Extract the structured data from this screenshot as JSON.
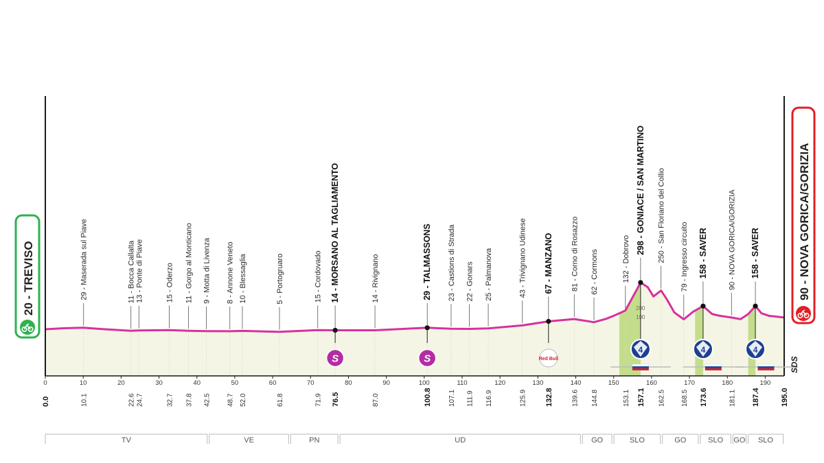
{
  "chart_data": {
    "type": "area",
    "title": "",
    "xlabel": "",
    "ylabel": "",
    "xlim": [
      0,
      195
    ],
    "ylim": [
      0,
      500
    ],
    "grid": false,
    "x_ticks": [
      0,
      10,
      20,
      30,
      40,
      50,
      60,
      70,
      80,
      90,
      100,
      110,
      120,
      130,
      140,
      150,
      160,
      170,
      180,
      190
    ],
    "start": {
      "label": "20 - TREVISO",
      "km": "0.0"
    },
    "finish": {
      "label": "90 - NOVA GORICA/GORIZIA",
      "km": "195.0"
    },
    "profile": [
      [
        0,
        20
      ],
      [
        5,
        26
      ],
      [
        10.1,
        29
      ],
      [
        15,
        21
      ],
      [
        22.6,
        11
      ],
      [
        24.7,
        13
      ],
      [
        32.7,
        15
      ],
      [
        37.8,
        11
      ],
      [
        42.5,
        9
      ],
      [
        48.7,
        8
      ],
      [
        52,
        10
      ],
      [
        61.8,
        5
      ],
      [
        71.9,
        15
      ],
      [
        76.5,
        14
      ],
      [
        87,
        14
      ],
      [
        100.8,
        29
      ],
      [
        107.1,
        23
      ],
      [
        111.9,
        22
      ],
      [
        116.9,
        25
      ],
      [
        125.9,
        43
      ],
      [
        132.8,
        67
      ],
      [
        139.6,
        81
      ],
      [
        144.8,
        62
      ],
      [
        148,
        82
      ],
      [
        150,
        100
      ],
      [
        152,
        120
      ],
      [
        153.1,
        132
      ],
      [
        155,
        210
      ],
      [
        157.1,
        298
      ],
      [
        159,
        270
      ],
      [
        160.5,
        215
      ],
      [
        162.5,
        250
      ],
      [
        164,
        200
      ],
      [
        166,
        120
      ],
      [
        168.5,
        79
      ],
      [
        171,
        125
      ],
      [
        173.6,
        158
      ],
      [
        176,
        110
      ],
      [
        178,
        100
      ],
      [
        181.1,
        90
      ],
      [
        183.5,
        80
      ],
      [
        185.5,
        110
      ],
      [
        187.4,
        158
      ],
      [
        189,
        115
      ],
      [
        191,
        100
      ],
      [
        195,
        90
      ]
    ],
    "annotations": [
      {
        "km": 10.1,
        "label": "29 - Maserada sul Piave",
        "strong": false
      },
      {
        "km": 22.6,
        "label": "11 - Bocca Callalta",
        "strong": false
      },
      {
        "km": 24.7,
        "label": "13 - Ponte di Piave",
        "strong": false
      },
      {
        "km": 32.7,
        "label": "15 - Oderzo",
        "strong": false
      },
      {
        "km": 37.8,
        "label": "11 - Gorgo al Monticano",
        "strong": false
      },
      {
        "km": 42.5,
        "label": "9 - Motta di Livenza",
        "strong": false
      },
      {
        "km": 48.7,
        "label": "8 - Annone Veneto",
        "strong": false
      },
      {
        "km": 52.0,
        "label": "10 - Blessaglia",
        "strong": false
      },
      {
        "km": 61.8,
        "label": "5 - Portogruaro",
        "strong": false
      },
      {
        "km": 71.9,
        "label": "15 - Cordovado",
        "strong": false
      },
      {
        "km": 76.5,
        "label": "14 - MORSANO AL TAGLIAMENTO",
        "strong": true
      },
      {
        "km": 87.0,
        "label": "14 - Rivignano",
        "strong": false
      },
      {
        "km": 100.8,
        "label": "29 - TALMASSONS",
        "strong": true
      },
      {
        "km": 107.1,
        "label": "23 - Castions di Strada",
        "strong": false
      },
      {
        "km": 111.9,
        "label": "22 - Gonars",
        "strong": false
      },
      {
        "km": 116.9,
        "label": "25 - Palmanova",
        "strong": false
      },
      {
        "km": 125.9,
        "label": "43 - Trivignano Udinese",
        "strong": false
      },
      {
        "km": 132.8,
        "label": "67 - MANZANO",
        "strong": true
      },
      {
        "km": 139.6,
        "label": "81 - Corno di Rosazzo",
        "strong": false
      },
      {
        "km": 144.8,
        "label": "62 - Cormons",
        "strong": false
      },
      {
        "km": 153.1,
        "label": "132 - Dobrovo",
        "strong": false
      },
      {
        "km": 157.1,
        "label": "298 - GONIACE / SAN MARTINO",
        "strong": true
      },
      {
        "km": 162.5,
        "label": "250 - San Floriano del Collio",
        "strong": false
      },
      {
        "km": 168.5,
        "label": "79 - Ingresso circuito",
        "strong": false
      },
      {
        "km": 173.6,
        "label": "158 - SAVER",
        "strong": true
      },
      {
        "km": 181.1,
        "label": "90 - NOVA GORICA/GORIZIA",
        "strong": false
      },
      {
        "km": 187.4,
        "label": "158 - SAVER",
        "strong": true
      }
    ],
    "km_labels": [
      {
        "km": 10.1,
        "text": "10.1",
        "strong": false
      },
      {
        "km": 22.6,
        "text": "22.6",
        "strong": false
      },
      {
        "km": 24.7,
        "text": "24.7",
        "strong": false
      },
      {
        "km": 32.7,
        "text": "32.7",
        "strong": false
      },
      {
        "km": 37.8,
        "text": "37.8",
        "strong": false
      },
      {
        "km": 42.5,
        "text": "42.5",
        "strong": false
      },
      {
        "km": 48.7,
        "text": "48.7",
        "strong": false
      },
      {
        "km": 52.0,
        "text": "52.0",
        "strong": false
      },
      {
        "km": 61.8,
        "text": "61.8",
        "strong": false
      },
      {
        "km": 71.9,
        "text": "71.9",
        "strong": false
      },
      {
        "km": 76.5,
        "text": "76.5",
        "strong": true
      },
      {
        "km": 87.0,
        "text": "87.0",
        "strong": false
      },
      {
        "km": 100.8,
        "text": "100.8",
        "strong": true
      },
      {
        "km": 107.1,
        "text": "107.1",
        "strong": false
      },
      {
        "km": 111.9,
        "text": "111.9",
        "strong": false
      },
      {
        "km": 116.9,
        "text": "116.9",
        "strong": false
      },
      {
        "km": 125.9,
        "text": "125.9",
        "strong": false
      },
      {
        "km": 132.8,
        "text": "132.8",
        "strong": true
      },
      {
        "km": 139.6,
        "text": "139.6",
        "strong": false
      },
      {
        "km": 144.8,
        "text": "144.8",
        "strong": false
      },
      {
        "km": 153.1,
        "text": "153.1",
        "strong": false
      },
      {
        "km": 157.1,
        "text": "157.1",
        "strong": true
      },
      {
        "km": 162.5,
        "text": "162.5",
        "strong": false
      },
      {
        "km": 168.5,
        "text": "168.5",
        "strong": false
      },
      {
        "km": 173.6,
        "text": "173.6",
        "strong": true
      },
      {
        "km": 181.1,
        "text": "181.1",
        "strong": false
      },
      {
        "km": 187.4,
        "text": "187.4",
        "strong": true
      }
    ],
    "sprints": [
      {
        "km": 76.5,
        "symbol": "S"
      },
      {
        "km": 100.8,
        "symbol": "S"
      }
    ],
    "climbs": [
      {
        "km": 157.1,
        "category": "4"
      },
      {
        "km": 173.6,
        "category": "4"
      },
      {
        "km": 187.4,
        "category": "4"
      }
    ],
    "bonus": [
      {
        "km": 132.8,
        "text": "Red Bull"
      }
    ],
    "slovenia_flags": [
      157.1,
      176.3,
      190.2
    ],
    "inner_scale": {
      "km": 156.4,
      "labels": [
        "200",
        "100"
      ]
    },
    "regions": [
      {
        "from": 0,
        "to": 43,
        "label": "TV"
      },
      {
        "from": 43,
        "to": 64.5,
        "label": "VE"
      },
      {
        "from": 64.5,
        "to": 77.5,
        "label": "PN"
      },
      {
        "from": 77.5,
        "to": 141.5,
        "label": "UD"
      },
      {
        "from": 141.5,
        "to": 149.8,
        "label": "GO"
      },
      {
        "from": 149.8,
        "to": 162.6,
        "label": "SLO"
      },
      {
        "from": 162.6,
        "to": 172.6,
        "label": "GO"
      },
      {
        "from": 172.6,
        "to": 181.2,
        "label": "SLO"
      },
      {
        "from": 181.2,
        "to": 185.2,
        "label": "GO"
      },
      {
        "from": 185.2,
        "to": 195,
        "label": "SLO"
      }
    ],
    "sponsor": "SDS"
  },
  "colors": {
    "profile_line": "#d6329c",
    "fill": "#f4f5e4",
    "climb_fill": "#c4dd8c",
    "start": "#2db24c",
    "finish": "#e31e24",
    "sprint": "#b42ca4",
    "climb_badge": "#1d3f93"
  },
  "icons": {
    "start": "cyclist-icon",
    "finish": "cyclist-icon"
  }
}
